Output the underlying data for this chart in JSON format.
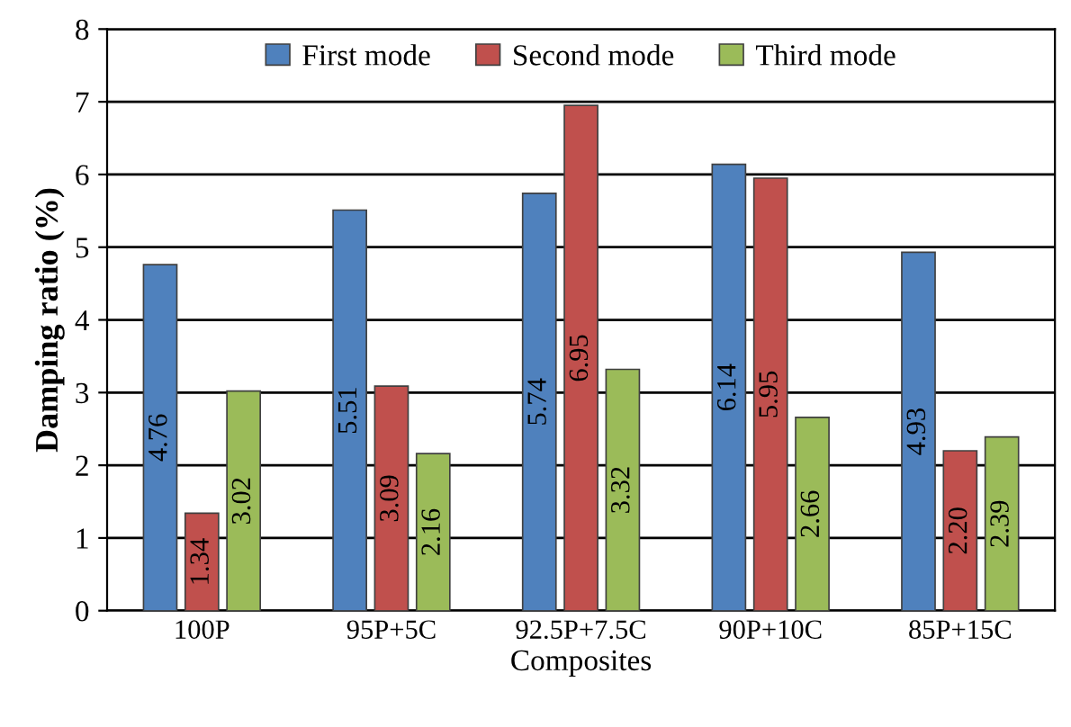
{
  "chart_data": {
    "type": "bar",
    "xlabel": "Composites",
    "ylabel": "Damping ratio (%)",
    "categories": [
      "100P",
      "95P+5C",
      "92.5P+7.5C",
      "90P+10C",
      "85P+15C"
    ],
    "series": [
      {
        "name": "First mode",
        "color": "#4f81bd",
        "values": [
          4.76,
          5.51,
          5.74,
          6.14,
          4.93
        ],
        "value_labels": [
          "4.76",
          "5.51",
          "5.74",
          "6.14",
          "4.93"
        ]
      },
      {
        "name": "Second mode",
        "color": "#c0504d",
        "values": [
          1.34,
          3.09,
          6.95,
          5.95,
          2.2
        ],
        "value_labels": [
          "1.34",
          "3.09",
          "6.95",
          "5.95",
          "2.20"
        ]
      },
      {
        "name": "Third mode",
        "color": "#9bbb59",
        "values": [
          3.02,
          2.16,
          3.32,
          2.66,
          2.39
        ],
        "value_labels": [
          "3.02",
          "2.16",
          "3.32",
          "2.66",
          "2.39"
        ]
      }
    ],
    "ylim": [
      0,
      8
    ],
    "yticks": [
      0,
      1,
      2,
      3,
      4,
      5,
      6,
      7,
      8
    ],
    "grid": "y",
    "legend": "top"
  }
}
